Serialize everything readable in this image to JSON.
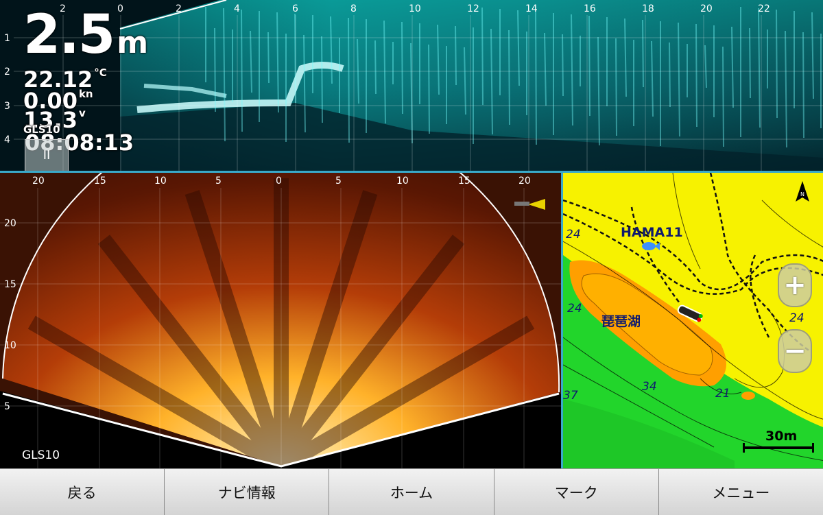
{
  "sonar": {
    "depth_value": "2.5",
    "depth_unit": "m",
    "temperature": "22.12",
    "temperature_unit": "°C",
    "speed": "0.00",
    "speed_unit": "kn",
    "voltage": "13.3",
    "voltage_unit": "v",
    "time": "08:08:13",
    "source": "GLS10",
    "pause_label": "II",
    "top_scale": [
      "2",
      "0",
      "2",
      "4",
      "6",
      "8",
      "10",
      "12",
      "14",
      "16",
      "18",
      "20",
      "22"
    ],
    "depth_scale": [
      "1",
      "2",
      "3",
      "4"
    ]
  },
  "fan": {
    "source": "GLS10",
    "h_scale": [
      "20",
      "15",
      "10",
      "5",
      "0",
      "5",
      "10",
      "15",
      "20"
    ],
    "v_scale": [
      "20",
      "15",
      "10",
      "5"
    ]
  },
  "map": {
    "waypoint": "HAMA11",
    "lake_name": "琵琶湖",
    "scale_label": "30m",
    "zoom_in_label": "+",
    "zoom_out_label": "−",
    "contour_labels": [
      "24",
      "24",
      "24",
      "34",
      "21",
      "37"
    ],
    "north_label": "N"
  },
  "bottom_nav": {
    "back": "戻る",
    "navi_info": "ナビ情報",
    "home": "ホーム",
    "mark": "マーク",
    "menu": "メニュー"
  },
  "colors": {
    "accent": "#3aa9c9",
    "map_land": "#f7f200",
    "map_shallow": "#22d52b",
    "map_deep": "#ff9f00"
  }
}
